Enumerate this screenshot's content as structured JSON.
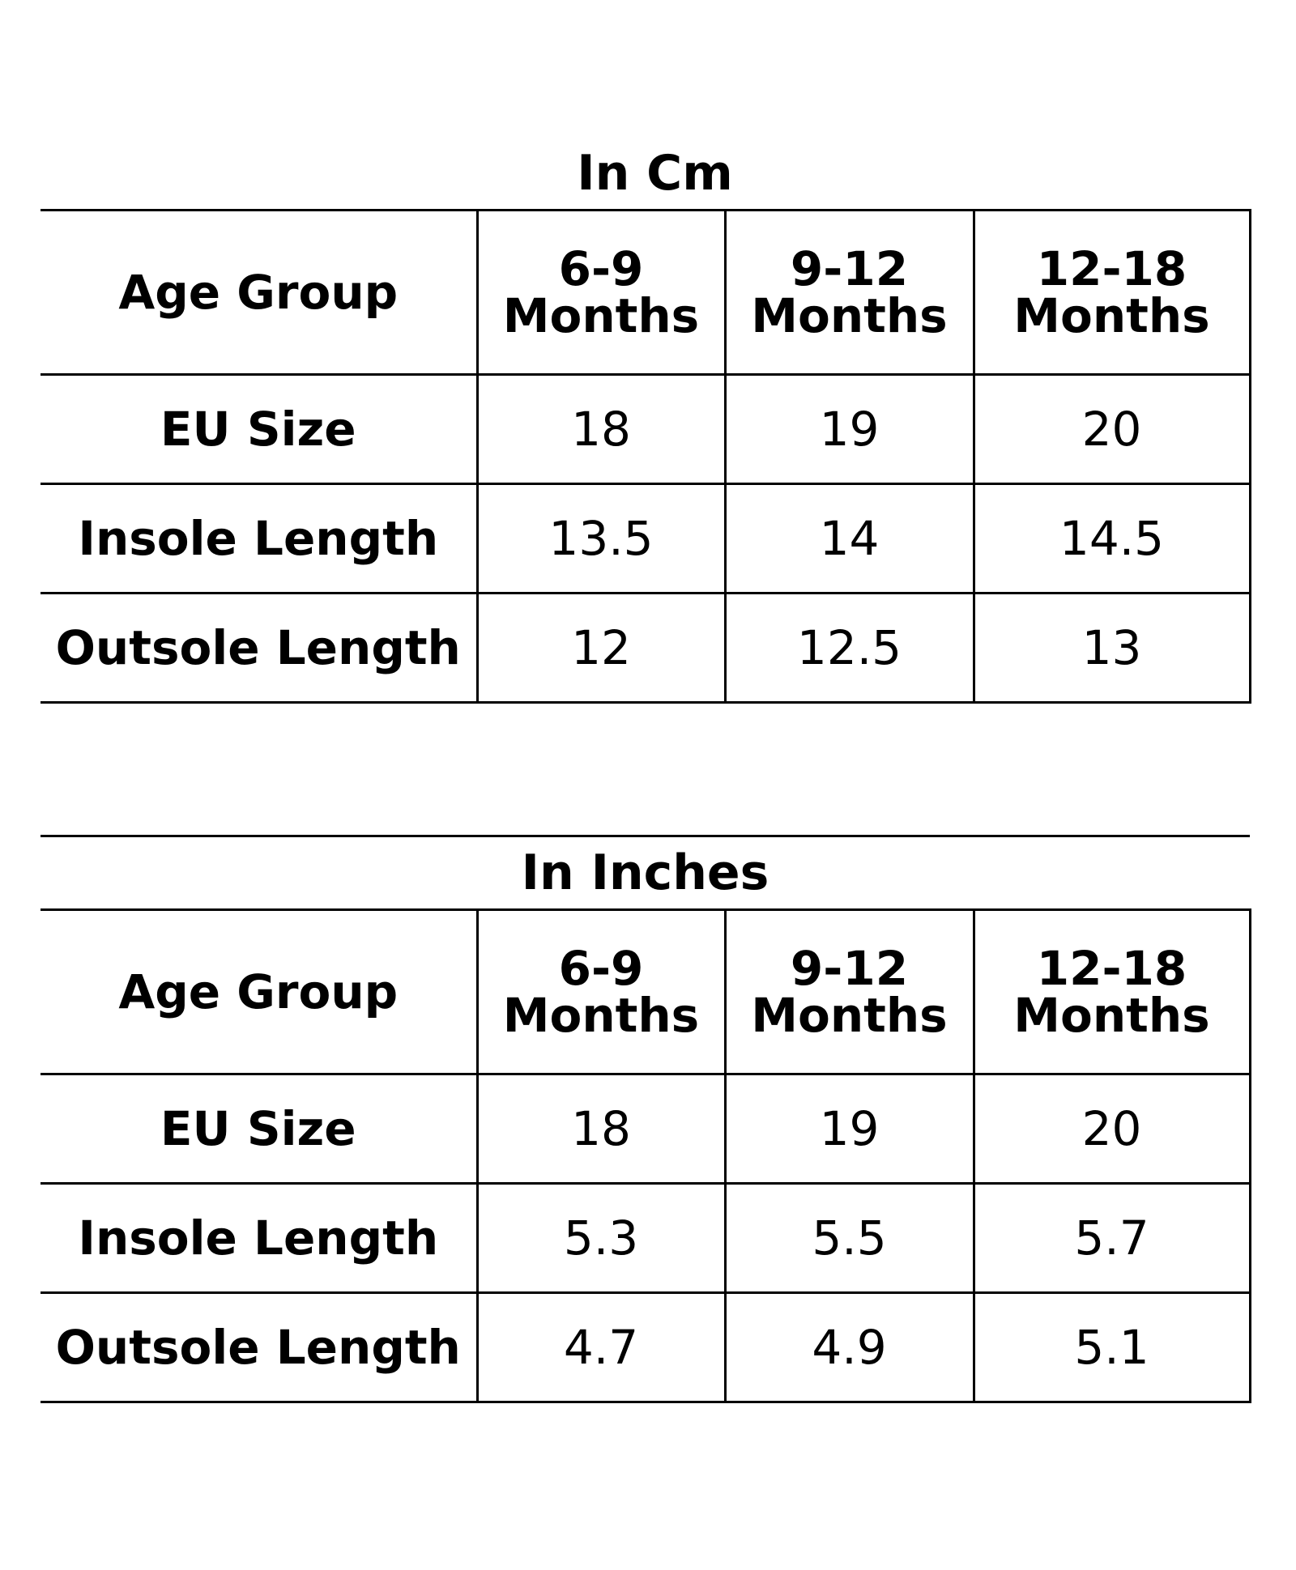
{
  "tables": [
    {
      "caption": "In Cm",
      "header_label": "Age Group",
      "age_groups": [
        {
          "range": "6-9",
          "unit": "Months"
        },
        {
          "range": "9-12",
          "unit": "Months"
        },
        {
          "range": "12-18",
          "unit": "Months"
        }
      ],
      "rows": [
        {
          "label": "EU Size",
          "values": [
            "18",
            "19",
            "20"
          ]
        },
        {
          "label": "Insole Length",
          "values": [
            "13.5",
            "14",
            "14.5"
          ]
        },
        {
          "label": "Outsole Length",
          "values": [
            "12",
            "12.5",
            "13"
          ]
        }
      ]
    },
    {
      "caption": "In Inches",
      "header_label": "Age Group",
      "age_groups": [
        {
          "range": "6-9",
          "unit": "Months"
        },
        {
          "range": "9-12",
          "unit": "Months"
        },
        {
          "range": "12-18",
          "unit": "Months"
        }
      ],
      "rows": [
        {
          "label": "EU Size",
          "values": [
            "18",
            "19",
            "20"
          ]
        },
        {
          "label": "Insole Length",
          "values": [
            "5.3",
            "5.5",
            "5.7"
          ]
        },
        {
          "label": "Outsole Length",
          "values": [
            "4.7",
            "4.9",
            "5.1"
          ]
        }
      ]
    }
  ]
}
